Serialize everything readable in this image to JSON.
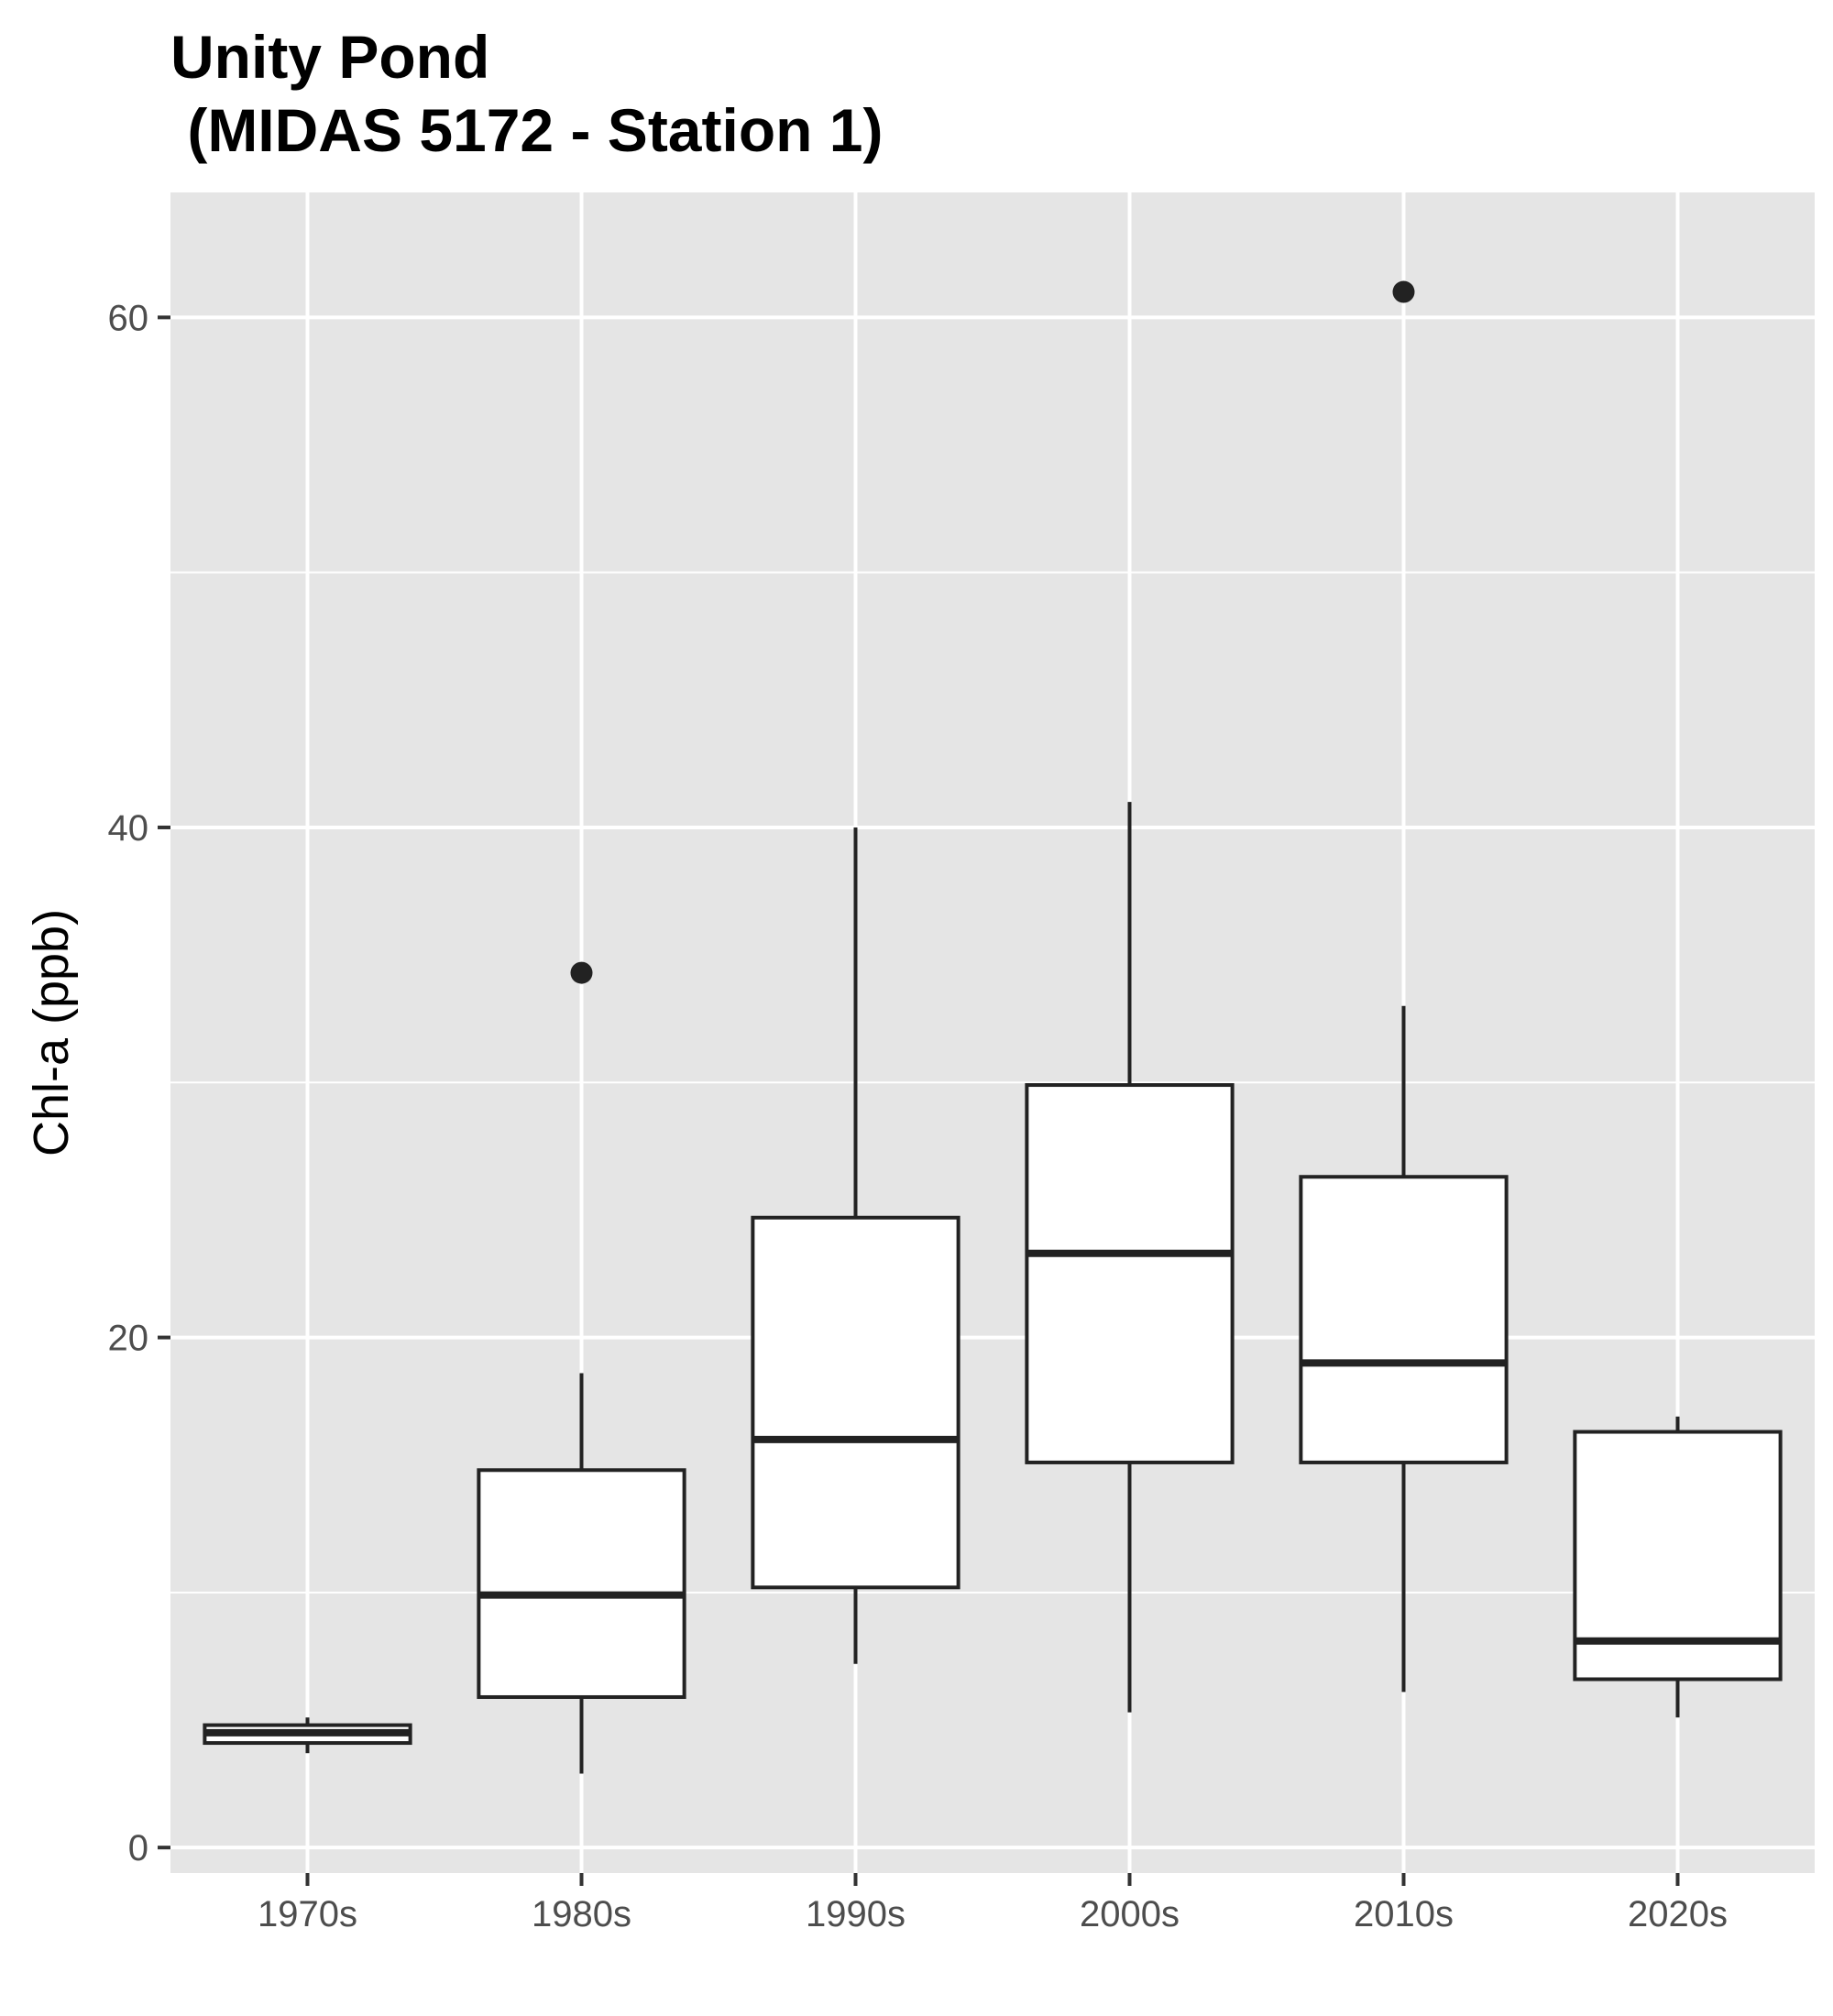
{
  "chart_data": {
    "type": "boxplot",
    "title": "Unity Pond",
    "subtitle": " (MIDAS 5172 - Station 1)",
    "xlabel": "",
    "ylabel": "Chl-a (ppb)",
    "ylim": [
      -1,
      64.9
    ],
    "yticks": [
      0,
      20,
      40,
      60
    ],
    "grid": true,
    "categories": [
      "1970s",
      "1980s",
      "1990s",
      "2000s",
      "2010s",
      "2020s"
    ],
    "boxes": [
      {
        "category": "1970s",
        "low": 3.7,
        "q1": 4.1,
        "median": 4.5,
        "q3": 4.8,
        "high": 5.1,
        "outliers": []
      },
      {
        "category": "1980s",
        "low": 2.9,
        "q1": 5.9,
        "median": 9.9,
        "q3": 14.8,
        "high": 18.6,
        "outliers": [
          34.3
        ]
      },
      {
        "category": "1990s",
        "low": 7.2,
        "q1": 10.2,
        "median": 16.0,
        "q3": 24.7,
        "high": 40.0,
        "outliers": []
      },
      {
        "category": "2000s",
        "low": 5.3,
        "q1": 15.1,
        "median": 23.3,
        "q3": 29.9,
        "high": 41.0,
        "outliers": []
      },
      {
        "category": "2010s",
        "low": 6.1,
        "q1": 15.1,
        "median": 19.0,
        "q3": 26.3,
        "high": 33.0,
        "outliers": [
          61.0
        ]
      },
      {
        "category": "2020s",
        "low": 5.1,
        "q1": 6.6,
        "median": 8.1,
        "q3": 16.3,
        "high": 16.9,
        "outliers": []
      }
    ]
  }
}
